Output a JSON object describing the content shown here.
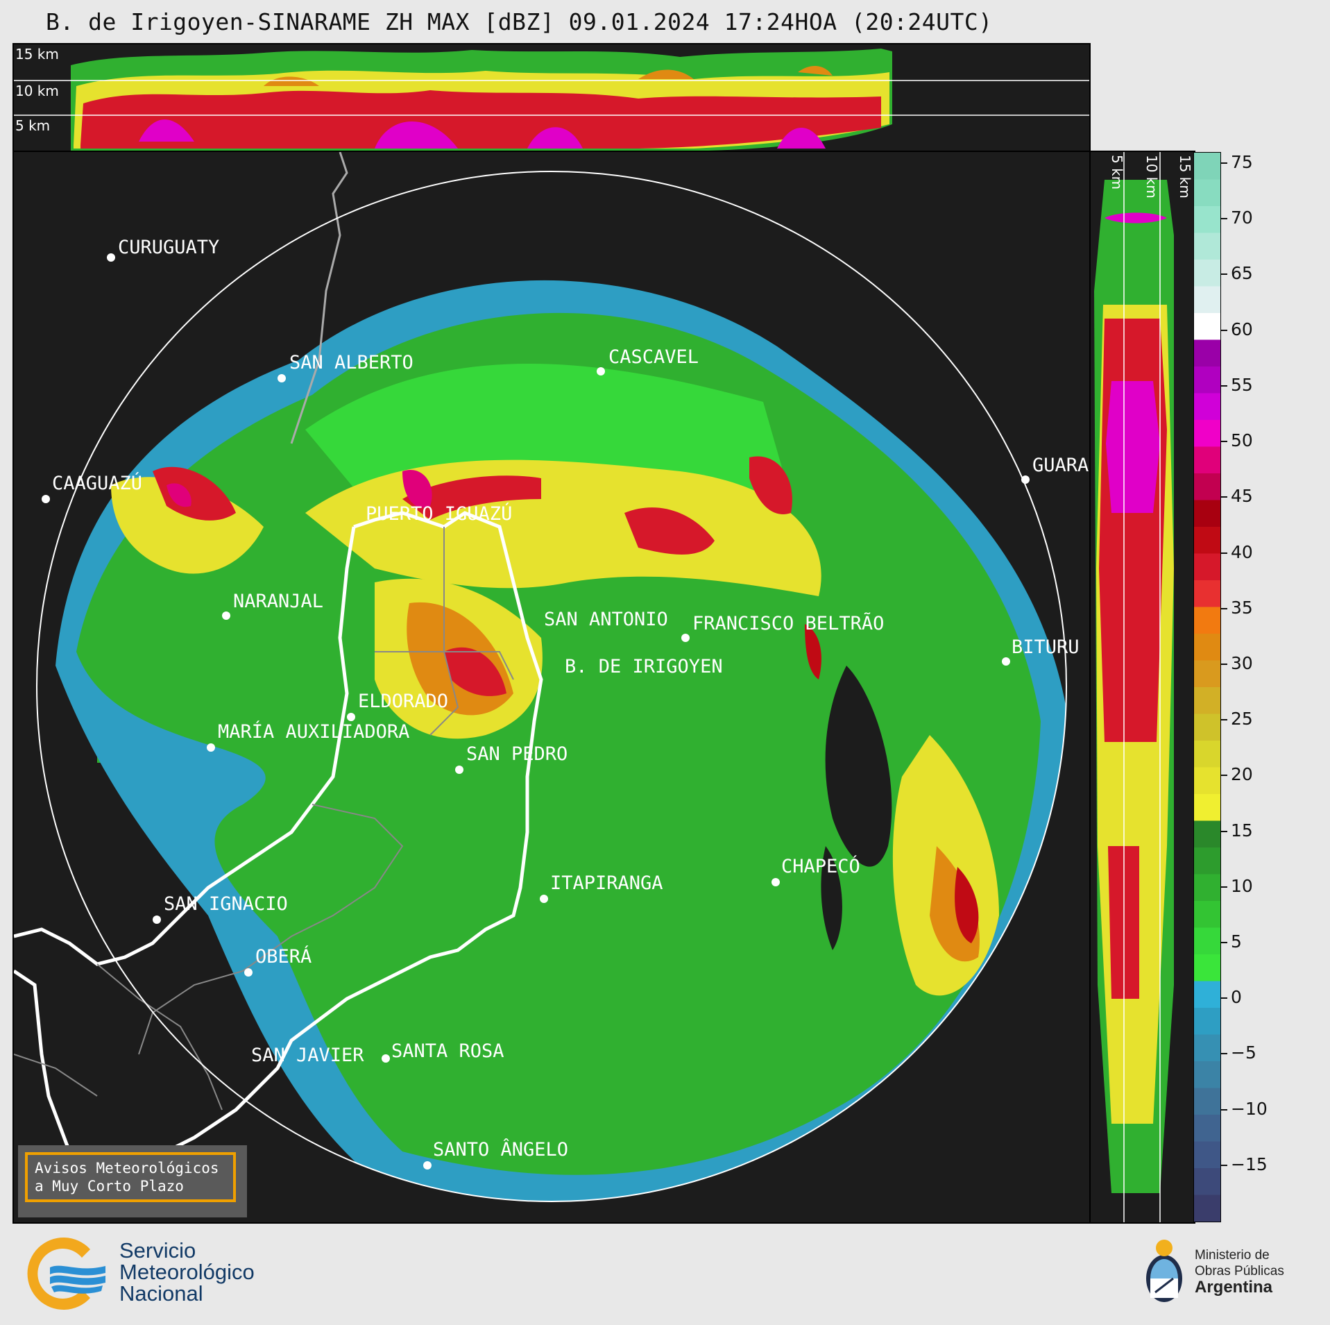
{
  "title": "B. de Irigoyen-SINARAME ZH MAX [dBZ] 09.01.2024 17:24HOA (20:24UTC)",
  "top_panel": {
    "height_labels": [
      "15 km",
      "10 km",
      "5 km"
    ]
  },
  "right_panel": {
    "height_labels": [
      "5 km",
      "10 km",
      "15 km"
    ]
  },
  "colorbar": {
    "ticks": [
      "75",
      "70",
      "65",
      "60",
      "55",
      "50",
      "45",
      "40",
      "35",
      "30",
      "25",
      "20",
      "15",
      "10",
      "5",
      "0",
      "−5",
      "−10",
      "−15"
    ],
    "range": [
      -20,
      76
    ],
    "colors": [
      "#3a3d6b",
      "#3d4a7a",
      "#3f5787",
      "#406490",
      "#3f7399",
      "#3b83a6",
      "#3690b3",
      "#2e9ec3",
      "#2fb0d8",
      "#3ae53a",
      "#36d83a",
      "#33c433",
      "#30b030",
      "#2d9c2d",
      "#2a882a",
      "#f0ef30",
      "#e6e22e",
      "#d9d62c",
      "#cfc22a",
      "#d2b026",
      "#d99a1e",
      "#e08a12",
      "#f27a10",
      "#e83030",
      "#d6182a",
      "#c00a14",
      "#a80010",
      "#c20050",
      "#e0007a",
      "#f000c8",
      "#d000d8",
      "#b000c0",
      "#9a00a8",
      "#ffffff",
      "#e0f0f0",
      "#c8ece4",
      "#b0e8d8",
      "#98e4cc",
      "#88dcc0",
      "#7fd4b8"
    ]
  },
  "radar": {
    "name": "B. DE IRIGOYEN"
  },
  "cities": [
    {
      "name": "CURUGUATY"
    },
    {
      "name": "SAN ALBERTO"
    },
    {
      "name": "CASCAVEL"
    },
    {
      "name": "CAAGUAZÚ"
    },
    {
      "name": "GUARA"
    },
    {
      "name": "PUERTO IGUAZÚ"
    },
    {
      "name": "NARANJAL"
    },
    {
      "name": "SAN ANTONIO"
    },
    {
      "name": "FRANCISCO BELTRÃO"
    },
    {
      "name": "BITURU"
    },
    {
      "name": "B. DE IRIGOYEN"
    },
    {
      "name": "ELDORADO"
    },
    {
      "name": "MARÍA AUXILIADORA"
    },
    {
      "name": "SAN PEDRO"
    },
    {
      "name": "CHAPECÓ"
    },
    {
      "name": "ITAPIRANGA"
    },
    {
      "name": "SAN IGNACIO"
    },
    {
      "name": "OBERÁ"
    },
    {
      "name": "SAN JAVIER"
    },
    {
      "name": "SANTA ROSA"
    },
    {
      "name": "SANTO ÂNGELO"
    }
  ],
  "notice": {
    "line1": "Avisos Meteorológicos",
    "line2": "a Muy Corto Plazo"
  },
  "footer": {
    "smn_line1": "Servicio",
    "smn_line2": "Meteorológico",
    "smn_line3": "Nacional",
    "mop_line1": "Ministerio de",
    "mop_line2": "Obras Públicas",
    "mop_line3": "Argentina"
  }
}
